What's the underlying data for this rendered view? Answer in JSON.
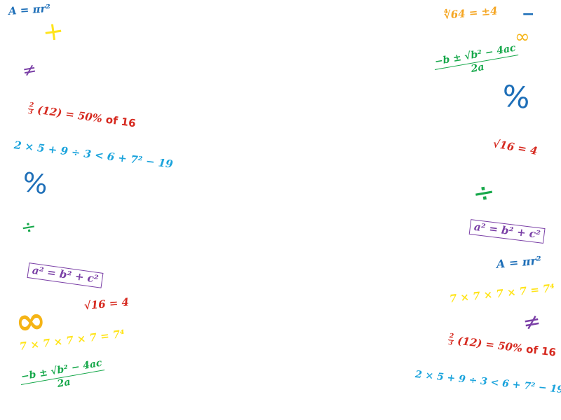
{
  "colors": {
    "blue": "#1e6fb8",
    "yellow": "#ffe41a",
    "purple": "#7a3fa6",
    "red": "#d62a20",
    "cyan": "#1aa3dc",
    "green": "#17a84b",
    "gold": "#f5b416",
    "orange": "#f5a623"
  },
  "left": {
    "circle_area": "A = πr²",
    "plus": "+",
    "not_equal": "≠",
    "fraction_num": "2",
    "fraction_den": "3",
    "fraction_rest": "(12) = 50%",
    "fraction_of": "of 16",
    "order_of_ops": "2 × 5 + 9 ÷ 3 < 6 + 7² − 19",
    "percent": "%",
    "divide": "÷",
    "pythagorean": "a² = b² + c²",
    "sqrt16": "√16 = 4",
    "infinity": "∞",
    "power": "7 × 7 × 7 × 7 = 7⁴",
    "quadratic_top": "−b ± √b² − 4ac",
    "quadratic_bottom": "2a"
  },
  "right": {
    "fourth_root": "∜64 = ±4",
    "minus": "−",
    "infinity": "∞",
    "quadratic_top": "−b ± √b² − 4ac",
    "quadratic_bottom": "2a",
    "percent": "%",
    "sqrt16": "√16 = 4",
    "divide": "÷",
    "pythagorean": "a² = b² + c²",
    "circle_area": "A = πr²",
    "power": "7 × 7 × 7 × 7 = 7⁴",
    "not_equal": "≠",
    "fraction_num": "2",
    "fraction_den": "3",
    "fraction_rest": "(12) = 50%",
    "fraction_of": "of 16",
    "order_of_ops": "2 × 5 + 9 ÷ 3 < 6 + 7² − 19"
  }
}
